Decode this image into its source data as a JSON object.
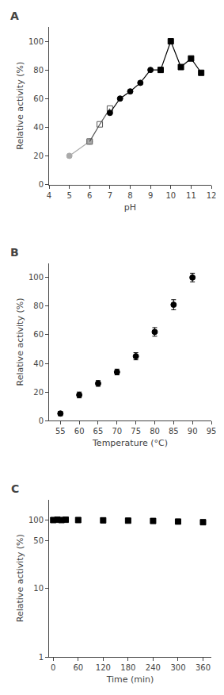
{
  "chart_data": [
    {
      "type": "line",
      "title": "A",
      "xlabel": "pH",
      "ylabel": "Relative activity (%)",
      "xlim": [
        4,
        12
      ],
      "xticks": [
        4,
        5,
        6,
        7,
        8,
        9,
        10,
        11,
        12
      ],
      "ylim": [
        0,
        110
      ],
      "yticks": [
        0,
        20,
        40,
        60,
        80,
        100
      ],
      "grid": false,
      "series": [
        {
          "x": [
            5.0,
            6.0
          ],
          "values": [
            20,
            30
          ],
          "color": "#aaaaaa",
          "marker": "circle",
          "line_style": "solid"
        },
        {
          "x": [
            6.0,
            6.5,
            7.0
          ],
          "values": [
            30,
            42,
            53
          ],
          "color": "#555555",
          "marker": "square-open",
          "line_style": "solid"
        },
        {
          "x": [
            7.0,
            7.5,
            8.0,
            8.5,
            9.0,
            9.5
          ],
          "values": [
            50,
            60,
            65,
            71,
            80,
            80
          ],
          "color": "black",
          "marker": "circle",
          "line_style": "solid"
        },
        {
          "x": [
            9.5,
            10.0,
            10.5,
            11.0,
            11.5
          ],
          "values": [
            80,
            100,
            82,
            88,
            78
          ],
          "color": "black",
          "marker": "square",
          "line_style": "solid"
        }
      ]
    },
    {
      "type": "scatter",
      "title": "B",
      "xlabel": "Temperature (°C)",
      "ylabel": "Relative activity (%)",
      "xlim": [
        52,
        95
      ],
      "xticks": [
        55,
        60,
        65,
        70,
        75,
        80,
        85,
        90,
        95
      ],
      "ylim": [
        0,
        110
      ],
      "yticks": [
        0,
        20,
        40,
        60,
        80,
        100
      ],
      "grid": false,
      "x": [
        55,
        60,
        65,
        70,
        75,
        80,
        85,
        90
      ],
      "series": [
        {
          "values": [
            5,
            18,
            26,
            34,
            45,
            62,
            81,
            100
          ],
          "errors": [
            1.5,
            2.0,
            2.0,
            2.0,
            2.5,
            3.0,
            3.5,
            3.0
          ],
          "color": "black",
          "marker": "circle"
        }
      ]
    },
    {
      "type": "scatter",
      "title": "C",
      "xlabel": "Time (min)",
      "ylabel": "Relative activity (%)",
      "log": "y",
      "xlim": [
        -10,
        380
      ],
      "xticks": [
        0,
        60,
        120,
        180,
        240,
        300,
        360
      ],
      "ylim": [
        1,
        200
      ],
      "yticks": [
        1,
        10,
        50,
        100
      ],
      "grid": false,
      "x": [
        0,
        10,
        20,
        30,
        60,
        120,
        180,
        240,
        300,
        360
      ],
      "series": [
        {
          "values": [
            100,
            101,
            100,
            101,
            100,
            99,
            98,
            97,
            95,
            93
          ],
          "errors": [
            2,
            2,
            2,
            2,
            2,
            2,
            3,
            3,
            3,
            3
          ],
          "color": "black",
          "marker": "square"
        }
      ]
    }
  ]
}
